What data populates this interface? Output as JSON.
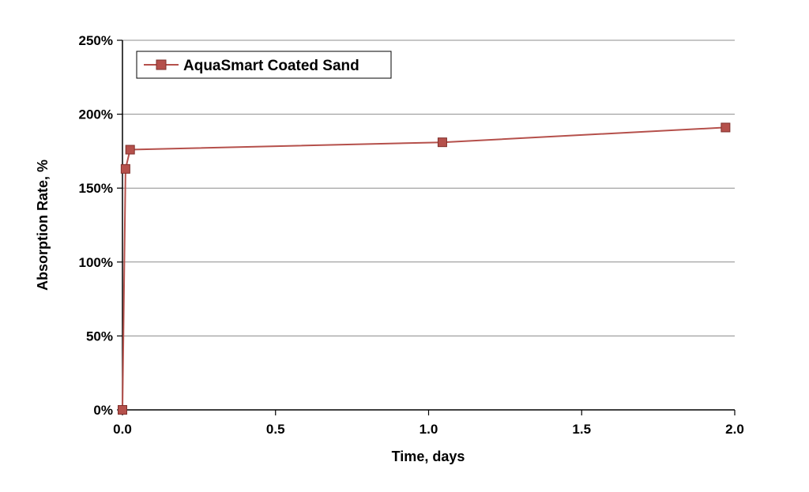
{
  "chart_data": {
    "type": "line",
    "title": "",
    "xlabel": "Time, days",
    "ylabel": "Absorption Rate, %",
    "xlim": [
      0.0,
      2.0
    ],
    "ylim": [
      0,
      250
    ],
    "x_ticks": [
      0.0,
      0.5,
      1.0,
      1.5,
      2.0
    ],
    "x_tick_labels": [
      "0.0",
      "0.5",
      "1.0",
      "1.5",
      "2.0"
    ],
    "y_ticks": [
      0,
      50,
      100,
      150,
      200,
      250
    ],
    "y_tick_labels": [
      "0%",
      "50%",
      "100%",
      "150%",
      "200%",
      "250%"
    ],
    "grid": "horizontal",
    "legend_position": "top-left",
    "series": [
      {
        "name": "AquaSmart Coated Sand",
        "color": "#b5504b",
        "marker": "square",
        "x": [
          0.0,
          0.01,
          0.025,
          1.045,
          1.97
        ],
        "values": [
          0,
          163,
          176,
          181,
          191
        ]
      }
    ]
  }
}
